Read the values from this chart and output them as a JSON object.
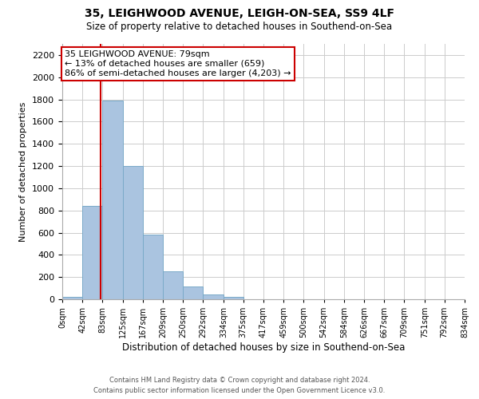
{
  "title": "35, LEIGHWOOD AVENUE, LEIGH-ON-SEA, SS9 4LF",
  "subtitle": "Size of property relative to detached houses in Southend-on-Sea",
  "xlabel": "Distribution of detached houses by size in Southend-on-Sea",
  "ylabel": "Number of detached properties",
  "bar_edges": [
    0,
    42,
    83,
    125,
    167,
    209,
    250,
    292,
    334,
    375,
    417,
    459,
    500,
    542,
    584,
    626,
    667,
    709,
    751,
    792,
    834
  ],
  "bar_heights": [
    25,
    840,
    1790,
    1200,
    580,
    255,
    115,
    40,
    20,
    0,
    0,
    0,
    0,
    0,
    0,
    0,
    0,
    0,
    0,
    0
  ],
  "bar_color": "#aac4e0",
  "bar_edgecolor": "#7aaac8",
  "property_line_x": 79,
  "property_line_color": "#cc0000",
  "ylim": [
    0,
    2300
  ],
  "yticks": [
    0,
    200,
    400,
    600,
    800,
    1000,
    1200,
    1400,
    1600,
    1800,
    2000,
    2200
  ],
  "annotation_title": "35 LEIGHWOOD AVENUE: 79sqm",
  "annotation_line1": "← 13% of detached houses are smaller (659)",
  "annotation_line2": "86% of semi-detached houses are larger (4,203) →",
  "tick_labels": [
    "0sqm",
    "42sqm",
    "83sqm",
    "125sqm",
    "167sqm",
    "209sqm",
    "250sqm",
    "292sqm",
    "334sqm",
    "375sqm",
    "417sqm",
    "459sqm",
    "500sqm",
    "542sqm",
    "584sqm",
    "626sqm",
    "667sqm",
    "709sqm",
    "751sqm",
    "792sqm",
    "834sqm"
  ],
  "footer_line1": "Contains HM Land Registry data © Crown copyright and database right 2024.",
  "footer_line2": "Contains public sector information licensed under the Open Government Licence v3.0.",
  "background_color": "#ffffff",
  "grid_color": "#cccccc"
}
